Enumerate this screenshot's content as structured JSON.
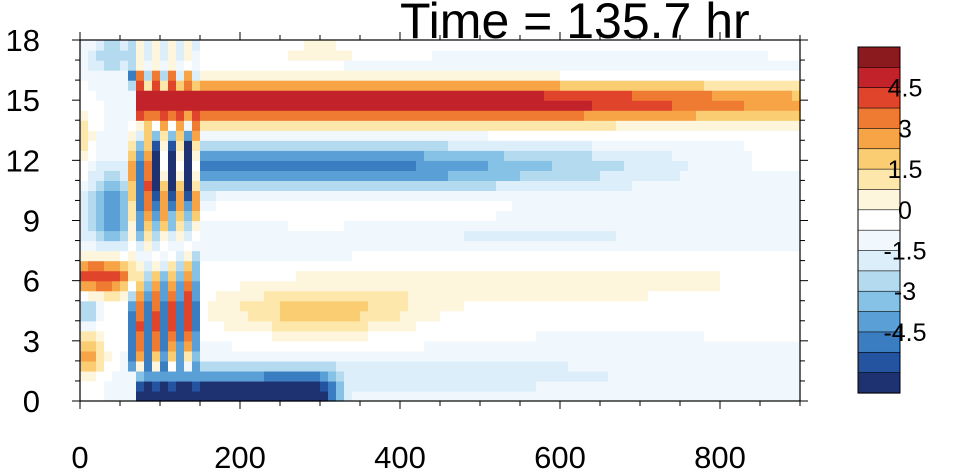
{
  "chart_data": {
    "type": "heatmap",
    "title": "Time = 135.7 hr",
    "xlabel": "",
    "ylabel": "",
    "xlim": [
      0,
      900
    ],
    "ylim": [
      0,
      18
    ],
    "x_ticks": [
      "0",
      "200",
      "400",
      "600",
      "800"
    ],
    "y_ticks": [
      "0",
      "3",
      "6",
      "9",
      "12",
      "15",
      "18"
    ],
    "colorbar": {
      "levels": [
        -5.25,
        -4.5,
        -3.75,
        -3,
        -2.25,
        -1.5,
        -0.75,
        0,
        0.75,
        1.5,
        2.25,
        3,
        3.75,
        4.5,
        5.25
      ],
      "labels": [
        "4.5",
        "3",
        "1.5",
        "0",
        "-1.5",
        "-3",
        "-4.5"
      ],
      "colors": [
        "#1e3170",
        "#2453a0",
        "#3a7dc0",
        "#5aa0d6",
        "#86c1e6",
        "#b4daf0",
        "#dbeefa",
        "#f1f8fd",
        "#ffffff",
        "#fdf5dc",
        "#fde7aa",
        "#fbcd72",
        "#f7a447",
        "#ef7a32",
        "#e0442a",
        "#c2222a",
        "#8a1a1d"
      ]
    },
    "features": [
      {
        "region": "upper warm band",
        "x": [
          70,
          800
        ],
        "y": [
          13.8,
          16.2
        ],
        "value": 5.0
      },
      {
        "region": "upper cool band",
        "x": [
          90,
          650
        ],
        "y": [
          10.8,
          13.0
        ],
        "value": -3.0
      },
      {
        "region": "lower cool band",
        "x": [
          70,
          300
        ],
        "y": [
          0.0,
          1.5
        ],
        "value": -5.0
      },
      {
        "region": "mid warm patch",
        "x": [
          230,
          420
        ],
        "y": [
          3.5,
          5.5
        ],
        "value": 2.0
      },
      {
        "region": "left warm patch",
        "x": [
          0,
          60
        ],
        "y": [
          5.5,
          7.0
        ],
        "value": 5.0
      }
    ]
  }
}
